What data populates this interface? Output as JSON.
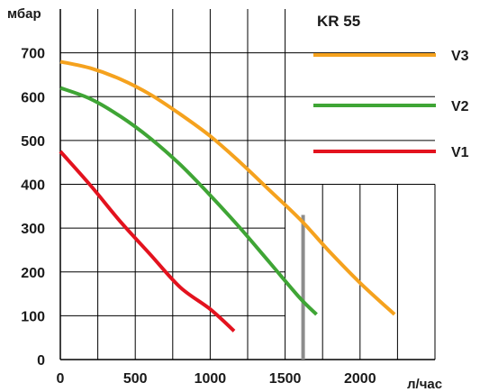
{
  "chart_data": {
    "type": "line",
    "title": "KR 55",
    "xlabel": "л/час",
    "ylabel": "мбар",
    "xlim": [
      0,
      2500
    ],
    "ylim": [
      0,
      800
    ],
    "x_ticks": [
      0,
      500,
      1000,
      1500,
      2000
    ],
    "y_ticks": [
      0,
      100,
      200,
      300,
      400,
      500,
      600,
      700
    ],
    "x_tick_labels": [
      "0",
      "500",
      "1000",
      "1500",
      "2000"
    ],
    "y_tick_labels": [
      "0",
      "100",
      "200",
      "300",
      "400",
      "500",
      "600",
      "700"
    ],
    "grid": true,
    "legend_position": "top-right",
    "series": [
      {
        "name": "V3",
        "color": "#f5a21e",
        "x": [
          0,
          200,
          400,
          600,
          800,
          1000,
          1200,
          1400,
          1600,
          1800,
          2000,
          2230
        ],
        "y": [
          680,
          665,
          640,
          605,
          560,
          510,
          450,
          385,
          320,
          245,
          175,
          103
        ]
      },
      {
        "name": "V2",
        "color": "#3fa535",
        "x": [
          0,
          200,
          400,
          600,
          800,
          1000,
          1200,
          1400,
          1600,
          1710
        ],
        "y": [
          620,
          595,
          555,
          505,
          445,
          375,
          300,
          220,
          140,
          103
        ]
      },
      {
        "name": "V1",
        "color": "#e3121e",
        "x": [
          0,
          200,
          400,
          600,
          800,
          1000,
          1160
        ],
        "y": [
          475,
          398,
          315,
          240,
          165,
          115,
          65
        ]
      }
    ],
    "reference_line": {
      "x": 1620,
      "y_from": 0,
      "y_to": 330,
      "color": "#8c8c8c"
    }
  }
}
